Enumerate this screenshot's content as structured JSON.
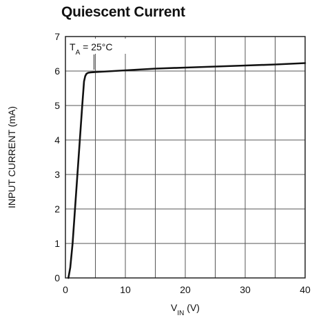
{
  "chart_data": {
    "type": "line",
    "title": "Quiescent Current",
    "xlabel": {
      "main": "V",
      "sub": "IN",
      "unit": " (V)"
    },
    "ylabel": "INPUT CURRENT (mA)",
    "xlim": [
      0,
      40
    ],
    "ylim": [
      0,
      7
    ],
    "x_ticks": [
      0,
      10,
      20,
      30,
      40
    ],
    "x_tick_labels": [
      "0",
      "10",
      "20",
      "30",
      "40"
    ],
    "y_ticks": [
      0,
      1,
      2,
      3,
      4,
      5,
      6,
      7
    ],
    "y_tick_labels": [
      "0",
      "1",
      "2",
      "3",
      "4",
      "5",
      "6",
      "7"
    ],
    "grid": true,
    "grid_x_step": 5,
    "grid_y_step": 1,
    "annotation": {
      "main": "T",
      "sub": "A",
      "rest": " = 25°C",
      "points_to": [
        5,
        6.0
      ]
    },
    "series": [
      {
        "x": [
          0.5,
          0.8,
          1.2,
          1.6,
          2.0,
          2.4,
          2.8,
          3.1,
          3.3,
          3.5,
          3.8,
          4.2,
          5.0,
          10,
          15,
          20,
          25,
          30,
          35,
          40
        ],
        "y": [
          0.0,
          0.3,
          1.0,
          2.0,
          3.0,
          4.0,
          5.0,
          5.7,
          5.85,
          5.92,
          5.95,
          5.96,
          5.97,
          6.02,
          6.07,
          6.1,
          6.13,
          6.16,
          6.19,
          6.23
        ]
      }
    ]
  }
}
